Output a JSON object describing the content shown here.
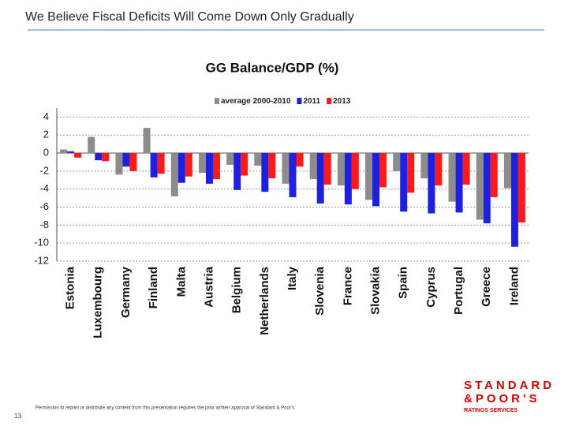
{
  "slide": {
    "title": "We Believe Fiscal Deficits Will Come Down Only Gradually",
    "footer": "Permission to reprint or distribute any content from this presentation requires the prior written approval of Standard & Poor's.",
    "page_number": "13.",
    "logo": [
      "STANDARD",
      "&POOR'S",
      "RATINGS SERVICES"
    ]
  },
  "chart_data": {
    "type": "bar",
    "title": "GG Balance/GDP (%)",
    "categories": [
      "Estonia",
      "Luxembourg",
      "Germany",
      "Finland",
      "Malta",
      "Austria",
      "Belgium",
      "Netherlands",
      "Italy",
      "Slovenia",
      "France",
      "Slovakia",
      "Spain",
      "Cyprus",
      "Portugal",
      "Greece",
      "Ireland"
    ],
    "series": [
      {
        "name": "average 2000-2010",
        "color": "#8c8c8c",
        "values": [
          0.4,
          1.8,
          -2.4,
          2.8,
          -4.8,
          -2.2,
          -1.3,
          -1.4,
          -3.4,
          -2.9,
          -3.6,
          -5.2,
          -2.0,
          -2.8,
          -5.4,
          -7.4,
          -3.9
        ]
      },
      {
        "name": "2011",
        "color": "#1f1fe0",
        "values": [
          0.2,
          -0.8,
          -1.5,
          -2.7,
          -3.3,
          -3.4,
          -4.1,
          -4.3,
          -4.9,
          -5.6,
          -5.7,
          -5.9,
          -6.5,
          -6.7,
          -6.6,
          -7.8,
          -10.4
        ]
      },
      {
        "name": "2013",
        "color": "#ff1a1a",
        "values": [
          -0.5,
          -0.9,
          -2.0,
          -2.3,
          -2.6,
          -2.9,
          -2.5,
          -2.8,
          -1.5,
          -3.5,
          -4.0,
          -3.8,
          -4.4,
          -3.6,
          -3.5,
          -4.9,
          -7.7
        ]
      }
    ],
    "ylim": [
      -12,
      5
    ],
    "yticks": [
      4,
      2,
      0,
      -2,
      -4,
      -6,
      -8,
      -10,
      -12
    ],
    "grid": true
  }
}
